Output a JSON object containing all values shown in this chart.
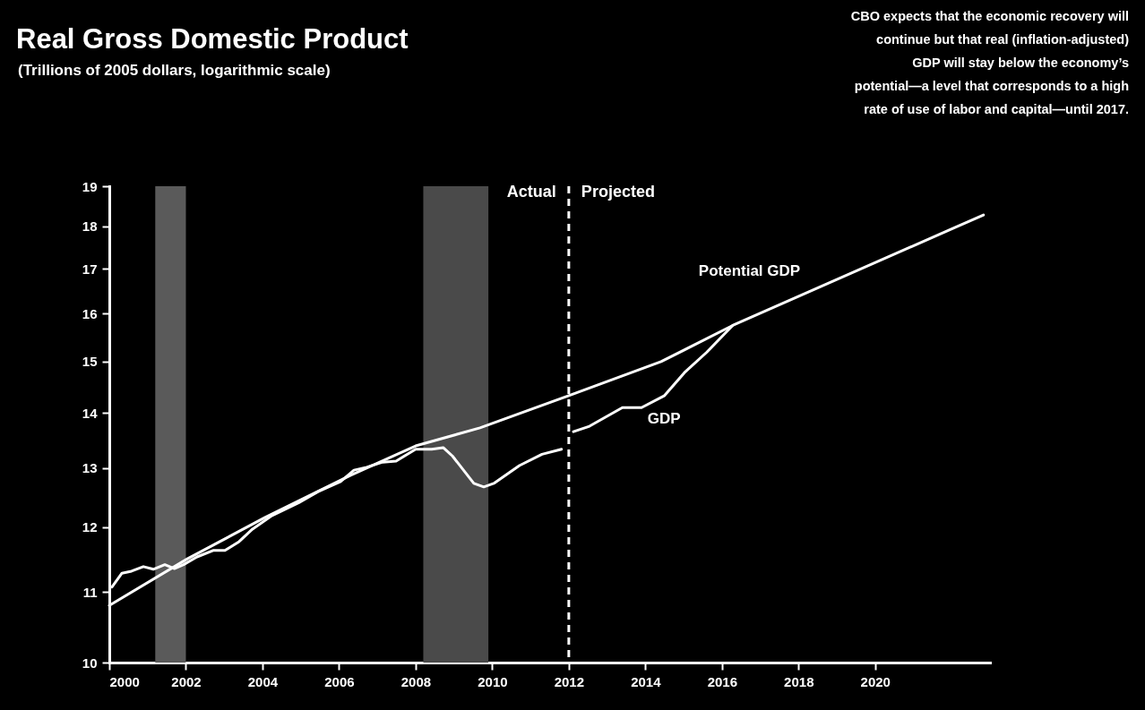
{
  "chart_data": {
    "type": "line",
    "title": "Real Gross Domestic Product",
    "subtitle": "(Trillions of 2005 dollars, logarithmic scale)",
    "log": "y",
    "xlim": [
      2000,
      2023
    ],
    "xticks": [
      2000,
      2002,
      2004,
      2006,
      2008,
      2010,
      2012,
      2014,
      2016,
      2018,
      2020
    ],
    "ylim": [
      10,
      19
    ],
    "yticks": [
      10,
      11,
      12,
      13,
      14,
      15,
      16,
      17,
      18,
      19
    ],
    "marker": "none",
    "line_style": "solid",
    "series": [
      {
        "name": "Potential GDP",
        "color": "#ffffff",
        "x": [
          2000.0,
          2002.04,
          2004.07,
          2006.3,
          2008.0,
          2009.68,
          2012.0,
          2014.41,
          2016.28,
          2022.83
        ],
        "values": [
          10.8,
          11.5,
          12.16,
          12.87,
          13.39,
          13.72,
          14.33,
          15.0,
          15.75,
          18.28
        ]
      },
      {
        "name": "GDP",
        "color": "#ffffff",
        "x": [
          2000.07,
          2000.33,
          2000.58,
          2000.89,
          2001.15,
          2001.45,
          2001.7,
          2001.94,
          2002.29,
          2002.71,
          2003.02,
          2003.39,
          2003.74,
          2004.25,
          2004.94,
          2005.45,
          2006.04,
          2006.39,
          2006.72,
          2007.14,
          2007.49,
          2008.0,
          2008.42,
          2008.72,
          2008.96,
          2009.52,
          2009.78,
          2010.04,
          2010.71,
          2011.3,
          2011.81,
          2011.96,
          2012.12,
          2012.54,
          2013.4,
          2013.9,
          2014.5,
          2015.02,
          2015.6,
          2016.28
        ],
        "values": [
          11.07,
          11.28,
          11.31,
          11.38,
          11.34,
          11.41,
          11.35,
          11.41,
          11.53,
          11.63,
          11.63,
          11.77,
          11.97,
          12.19,
          12.4,
          12.59,
          12.76,
          12.96,
          13.01,
          13.1,
          13.12,
          13.33,
          13.33,
          13.36,
          13.21,
          12.73,
          12.67,
          12.73,
          13.04,
          13.24,
          13.33,
          null,
          13.65,
          13.75,
          14.1,
          14.1,
          14.33,
          14.78,
          15.19,
          15.75
        ]
      }
    ],
    "bands": [
      {
        "axis": "x",
        "from": 2001.2,
        "to": 2002.0,
        "color": "#5a5a5a"
      },
      {
        "axis": "x",
        "from": 2008.2,
        "to": 2009.9,
        "color": "#4a4a4a"
      }
    ],
    "ref_lines": [
      {
        "axis": "x",
        "value": 2012.0,
        "color": "#ffffff",
        "line_style": "dashed"
      }
    ],
    "annotations": [
      "Actual",
      "Projected",
      "CBO expects that the economic recovery will continue but that real (inflation-adjusted) GDP will stay below the economy’s potential—a level that corresponds to a high rate of use of labor and capital—until 2017."
    ]
  }
}
